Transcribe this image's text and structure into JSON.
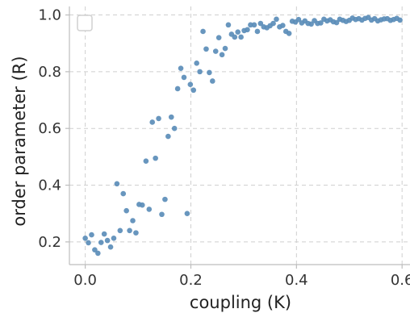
{
  "chart_data": {
    "type": "scatter",
    "title": "",
    "xlabel": "coupling (K)",
    "ylabel": "order parameter (R)",
    "xlim": [
      -0.03,
      0.615
    ],
    "ylim": [
      0.12,
      1.03
    ],
    "xticks": [
      0.0,
      0.2,
      0.4,
      0.6
    ],
    "xtick_labels": [
      "0.0",
      "0.2",
      "0.4",
      "0.6"
    ],
    "yticks": [
      0.2,
      0.4,
      0.6,
      0.8,
      1.0
    ],
    "ytick_labels": [
      "0.2",
      "0.4",
      "0.6",
      "0.8",
      "1.0"
    ],
    "grid": true,
    "legend": "top-left, empty",
    "marker_color": "#5b8db8",
    "series": [
      {
        "points": [
          [
            0.0,
            0.213
          ],
          [
            0.006,
            0.197
          ],
          [
            0.012,
            0.225
          ],
          [
            0.018,
            0.172
          ],
          [
            0.024,
            0.16
          ],
          [
            0.03,
            0.198
          ],
          [
            0.036,
            0.228
          ],
          [
            0.042,
            0.205
          ],
          [
            0.048,
            0.182
          ],
          [
            0.054,
            0.213
          ],
          [
            0.06,
            0.405
          ],
          [
            0.066,
            0.24
          ],
          [
            0.072,
            0.37
          ],
          [
            0.078,
            0.31
          ],
          [
            0.084,
            0.24
          ],
          [
            0.09,
            0.275
          ],
          [
            0.096,
            0.232
          ],
          [
            0.102,
            0.332
          ],
          [
            0.108,
            0.33
          ],
          [
            0.115,
            0.485
          ],
          [
            0.121,
            0.315
          ],
          [
            0.127,
            0.622
          ],
          [
            0.133,
            0.495
          ],
          [
            0.139,
            0.635
          ],
          [
            0.145,
            0.297
          ],
          [
            0.151,
            0.35
          ],
          [
            0.157,
            0.572
          ],
          [
            0.163,
            0.64
          ],
          [
            0.169,
            0.6
          ],
          [
            0.175,
            0.74
          ],
          [
            0.181,
            0.812
          ],
          [
            0.187,
            0.78
          ],
          [
            0.193,
            0.3
          ],
          [
            0.199,
            0.755
          ],
          [
            0.205,
            0.735
          ],
          [
            0.211,
            0.83
          ],
          [
            0.217,
            0.8
          ],
          [
            0.223,
            0.942
          ],
          [
            0.229,
            0.88
          ],
          [
            0.235,
            0.797
          ],
          [
            0.241,
            0.767
          ],
          [
            0.247,
            0.872
          ],
          [
            0.253,
            0.92
          ],
          [
            0.259,
            0.86
          ],
          [
            0.265,
            0.882
          ],
          [
            0.271,
            0.965
          ],
          [
            0.277,
            0.932
          ],
          [
            0.283,
            0.922
          ],
          [
            0.289,
            0.94
          ],
          [
            0.295,
            0.922
          ],
          [
            0.301,
            0.945
          ],
          [
            0.307,
            0.948
          ],
          [
            0.313,
            0.965
          ],
          [
            0.32,
            0.965
          ],
          [
            0.326,
            0.942
          ],
          [
            0.332,
            0.97
          ],
          [
            0.338,
            0.958
          ],
          [
            0.344,
            0.955
          ],
          [
            0.35,
            0.962
          ],
          [
            0.356,
            0.97
          ],
          [
            0.362,
            0.985
          ],
          [
            0.368,
            0.958
          ],
          [
            0.374,
            0.963
          ],
          [
            0.38,
            0.942
          ],
          [
            0.386,
            0.935
          ],
          [
            0.392,
            0.978
          ],
          [
            0.398,
            0.975
          ],
          [
            0.404,
            0.984
          ],
          [
            0.41,
            0.972
          ],
          [
            0.416,
            0.979
          ],
          [
            0.422,
            0.97
          ],
          [
            0.428,
            0.968
          ],
          [
            0.434,
            0.98
          ],
          [
            0.44,
            0.97
          ],
          [
            0.446,
            0.972
          ],
          [
            0.452,
            0.985
          ],
          [
            0.458,
            0.979
          ],
          [
            0.464,
            0.983
          ],
          [
            0.47,
            0.976
          ],
          [
            0.476,
            0.973
          ],
          [
            0.482,
            0.985
          ],
          [
            0.488,
            0.981
          ],
          [
            0.494,
            0.977
          ],
          [
            0.5,
            0.981
          ],
          [
            0.506,
            0.989
          ],
          [
            0.512,
            0.984
          ],
          [
            0.518,
            0.987
          ],
          [
            0.524,
            0.982
          ],
          [
            0.53,
            0.988
          ],
          [
            0.536,
            0.991
          ],
          [
            0.542,
            0.982
          ],
          [
            0.548,
            0.987
          ],
          [
            0.554,
            0.979
          ],
          [
            0.56,
            0.983
          ],
          [
            0.566,
            0.986
          ],
          [
            0.572,
            0.987
          ],
          [
            0.578,
            0.981
          ],
          [
            0.584,
            0.984
          ],
          [
            0.59,
            0.988
          ],
          [
            0.596,
            0.982
          ]
        ]
      }
    ]
  }
}
